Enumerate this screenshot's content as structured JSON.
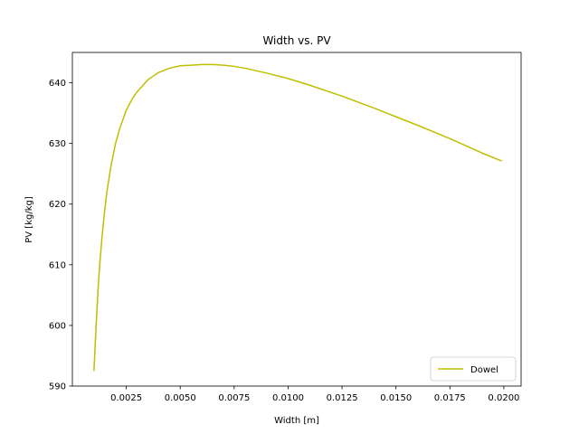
{
  "chart_data": {
    "type": "line",
    "title": "Width vs. PV",
    "xlabel": "Width [m]",
    "ylabel": "PV [kg/kg]",
    "xlim": [
      0.0,
      0.0208
    ],
    "ylim": [
      590,
      645
    ],
    "xticks": [
      0.0025,
      0.005,
      0.0075,
      0.01,
      0.0125,
      0.015,
      0.0175,
      0.02
    ],
    "xtick_labels": [
      "0.0025",
      "0.0050",
      "0.0075",
      "0.0100",
      "0.0125",
      "0.0150",
      "0.0175",
      "0.0200"
    ],
    "yticks": [
      590,
      600,
      610,
      620,
      630,
      640
    ],
    "ytick_labels": [
      "590",
      "600",
      "610",
      "620",
      "630",
      "640"
    ],
    "grid": false,
    "legend": {
      "placement": "bottom-right"
    },
    "series": [
      {
        "name": "Dowel",
        "color": "#bfbf00",
        "x": [
          0.001,
          0.0011,
          0.0012,
          0.0013,
          0.0014,
          0.0015,
          0.0016,
          0.0018,
          0.002,
          0.0022,
          0.0025,
          0.0028,
          0.003,
          0.0035,
          0.004,
          0.0045,
          0.005,
          0.0055,
          0.006,
          0.0065,
          0.007,
          0.0075,
          0.008,
          0.009,
          0.01,
          0.011,
          0.0125,
          0.014,
          0.015,
          0.016,
          0.0175,
          0.019,
          0.0199
        ],
        "y": [
          592.5,
          600.0,
          606.5,
          611.5,
          615.5,
          619.0,
          622.0,
          626.5,
          630.0,
          632.5,
          635.5,
          637.5,
          638.5,
          640.5,
          641.7,
          642.4,
          642.8,
          642.9,
          643.0,
          643.0,
          642.9,
          642.7,
          642.4,
          641.6,
          640.7,
          639.6,
          637.8,
          635.8,
          634.4,
          633.0,
          630.8,
          628.4,
          627.1
        ]
      }
    ]
  }
}
